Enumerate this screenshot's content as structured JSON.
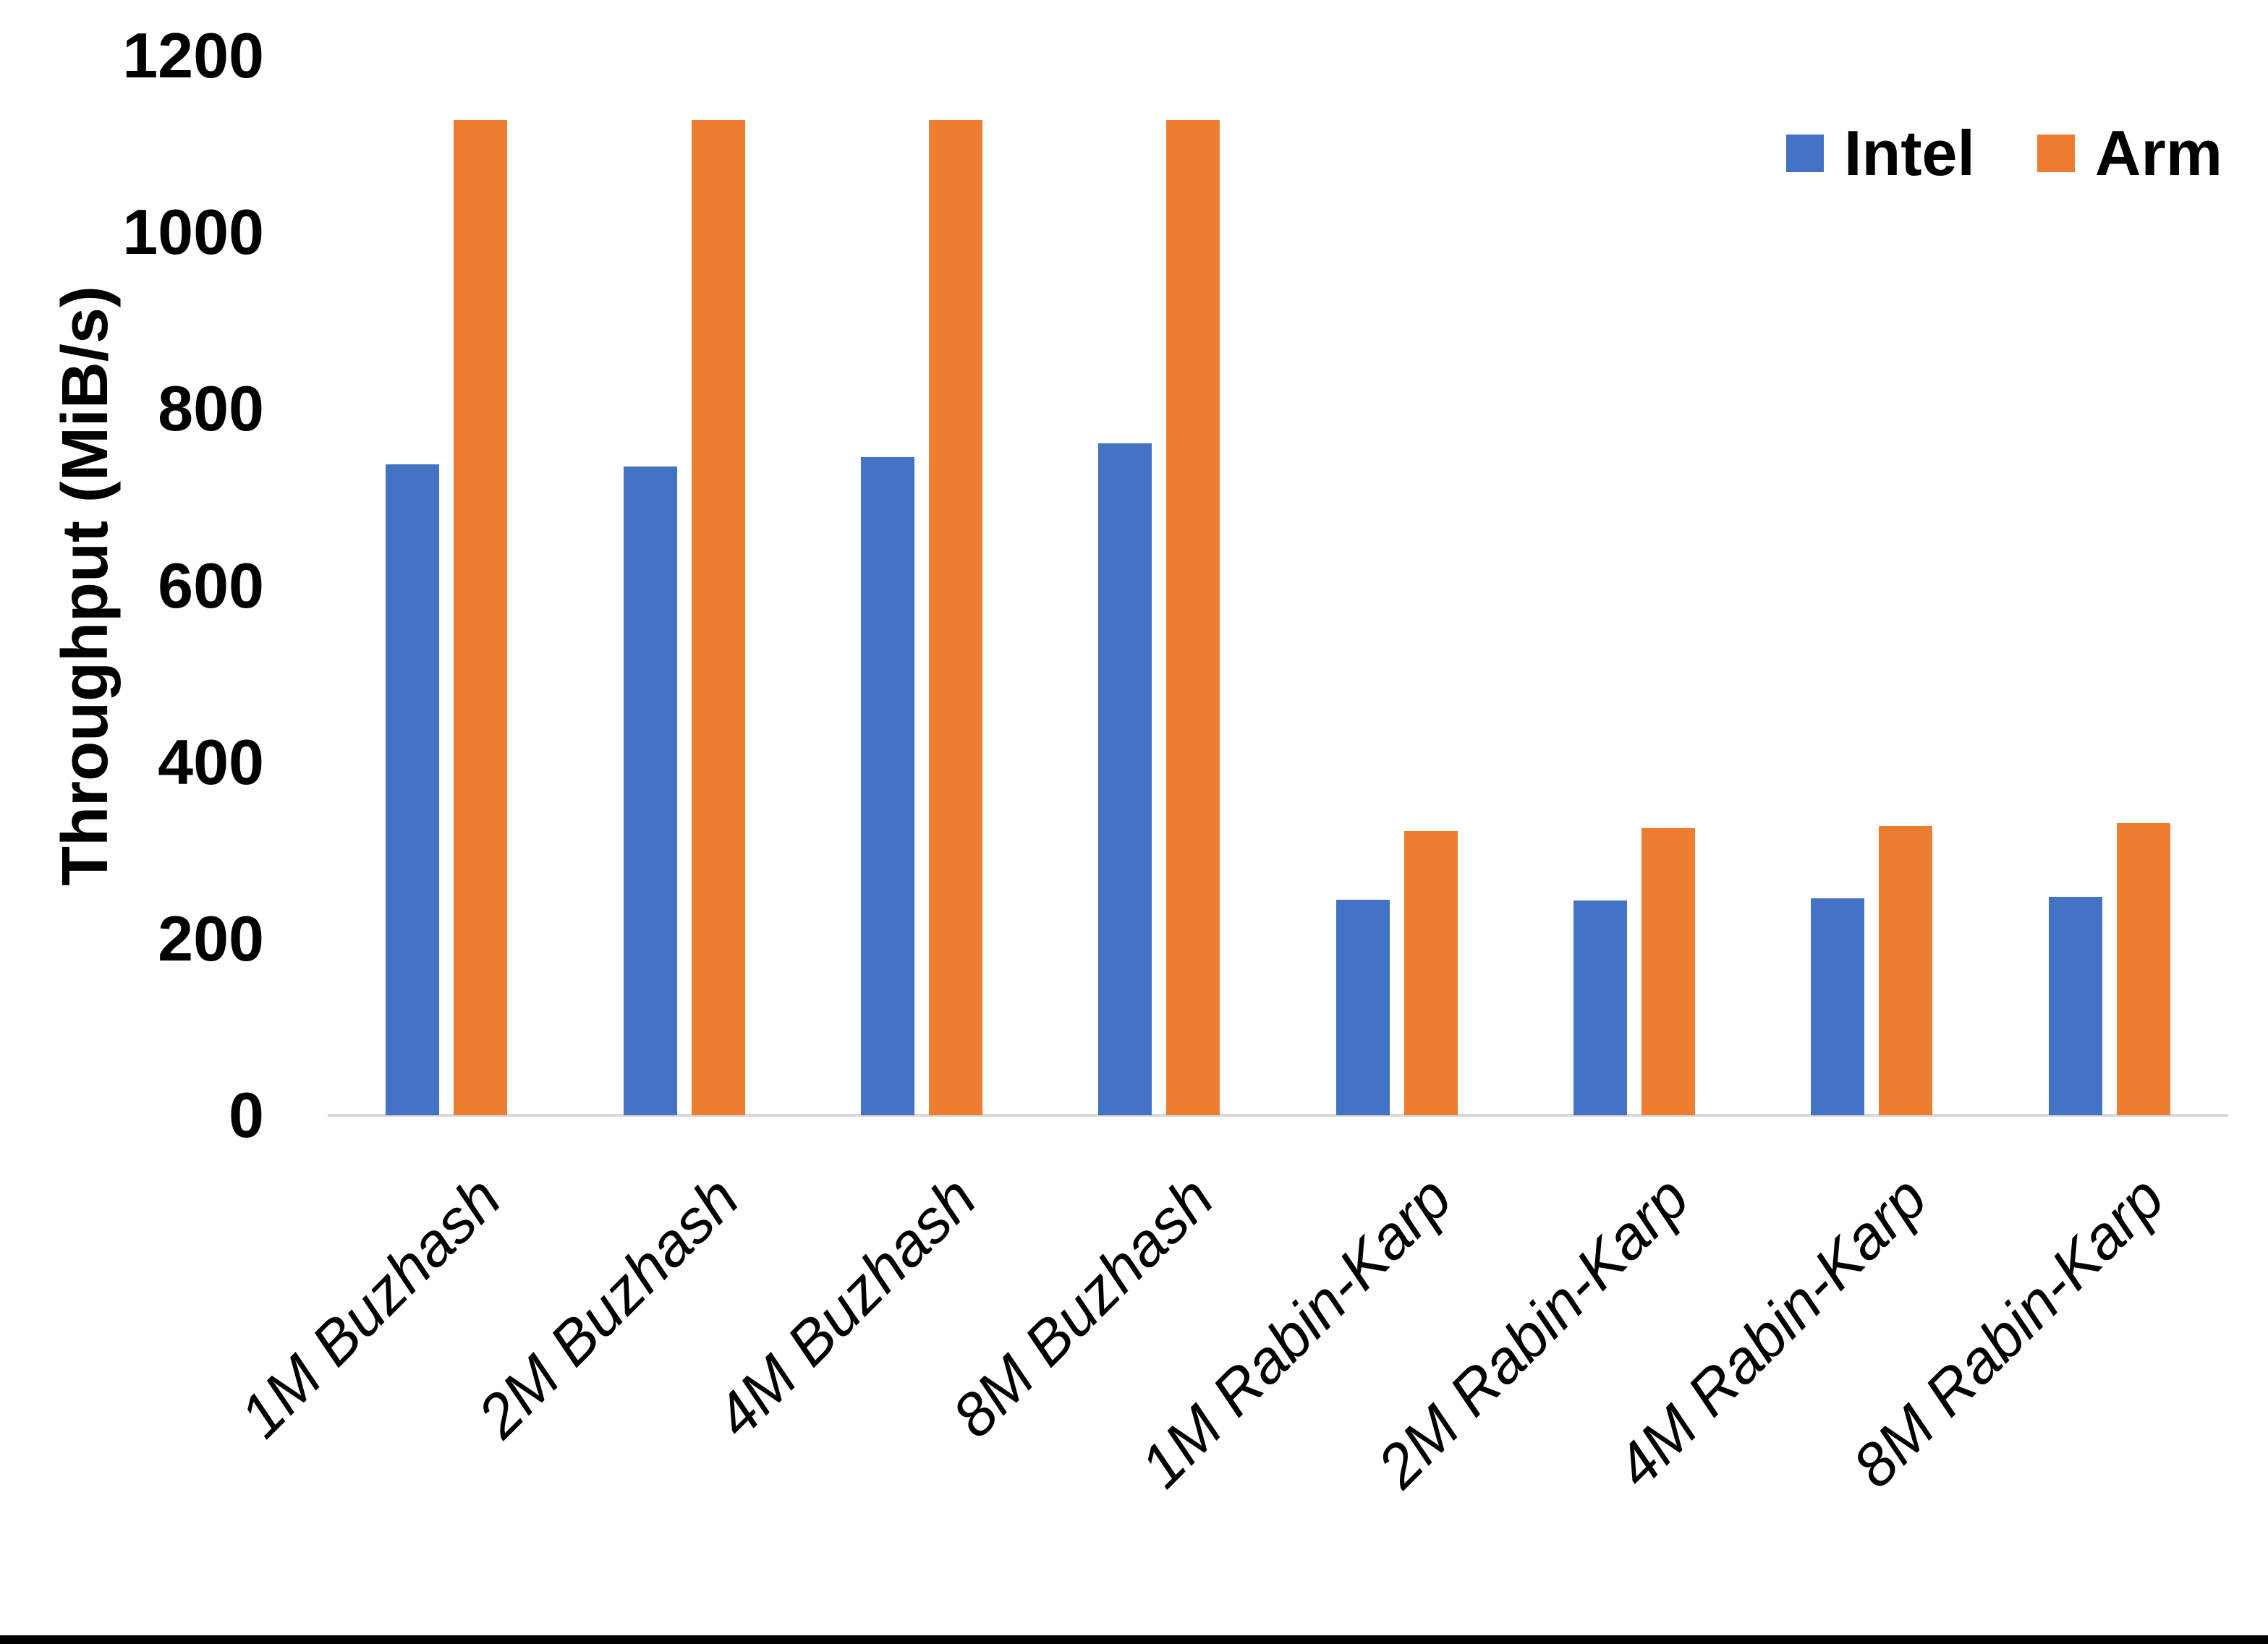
{
  "chart_data": {
    "type": "bar",
    "title": "",
    "ylabel": "Throughput (MiB/s)",
    "xlabel": "",
    "categories": [
      "1M Buzhash",
      "2M Buzhash",
      "4M Buzhash",
      "8M Buzhash",
      "1M Rabin-Karp",
      "2M Rabin-Karp",
      "4M Rabin-Karp",
      "8M Rabin-Karp"
    ],
    "series": [
      {
        "name": "Intel",
        "color": "#4472C4",
        "values": [
          737,
          735,
          745,
          761,
          244,
          243,
          246,
          247
        ]
      },
      {
        "name": "Arm",
        "color": "#ED7D31",
        "values": [
          1127,
          1127,
          1127,
          1127,
          322,
          325,
          328,
          331
        ]
      }
    ],
    "yticks": [
      0,
      200,
      400,
      600,
      800,
      1000,
      1200
    ],
    "ylim": [
      0,
      1200
    ],
    "grid": false,
    "legend_position": "top-right",
    "category_label_rotation_deg": -45,
    "axis_line_color": "#D9D9D9",
    "text_color": "#000000",
    "background_color": "#FFFFFF"
  }
}
